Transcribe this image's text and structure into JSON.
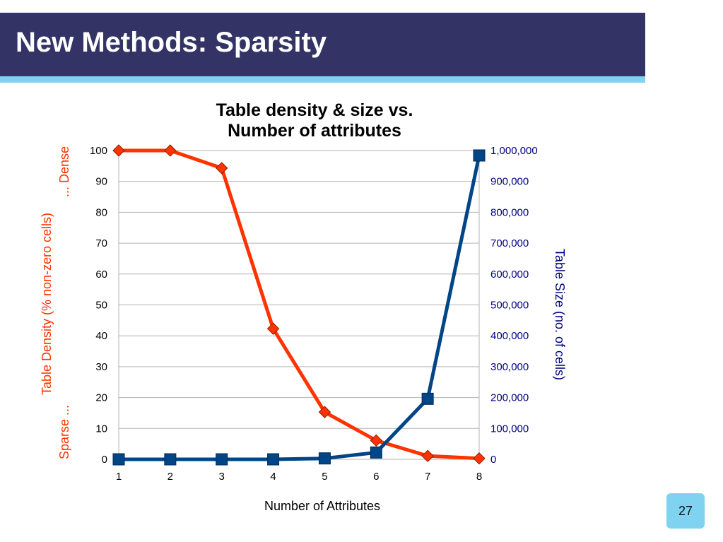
{
  "slide": {
    "title": "New Methods: Sparsity",
    "page_number": "27"
  },
  "colors": {
    "title_bar": "#333366",
    "accent": "#7fd3f0",
    "density_series": "#ff3300",
    "size_series": "#004586",
    "right_axis_text": "#000080"
  },
  "chart_data": {
    "type": "line",
    "title": [
      "Table density & size vs.",
      "Number of attributes"
    ],
    "xlabel": "Number of Attributes",
    "ylabel_left": {
      "outer": "Table Density (% non-zero cells)",
      "inner_top": "... Dense",
      "inner_bottom": "Sparse ..."
    },
    "ylabel_right": "Table Size (no. of cells)",
    "x": [
      1,
      2,
      3,
      4,
      5,
      6,
      7,
      8
    ],
    "x_tick_labels": [
      "1",
      "2",
      "3",
      "4",
      "5",
      "6",
      "7",
      "8"
    ],
    "ylim_left": [
      0,
      100
    ],
    "ylim_right": [
      0,
      1000000
    ],
    "y_left_ticks": [
      "0",
      "10",
      "20",
      "30",
      "40",
      "50",
      "60",
      "70",
      "80",
      "90",
      "100"
    ],
    "y_right_ticks": [
      "0",
      "100,000",
      "200,000",
      "300,000",
      "400,000",
      "500,000",
      "600,000",
      "700,000",
      "800,000",
      "900,000",
      "1,000,000"
    ],
    "grid": true,
    "legend": "none",
    "series": [
      {
        "axis": "left",
        "marker": "diamond",
        "values": [
          100,
          100,
          94.3,
          42.3,
          15.3,
          6.1,
          1.1,
          0.3
        ]
      },
      {
        "axis": "right",
        "marker": "square",
        "values": [
          0,
          0,
          0,
          0,
          3000,
          22000,
          196000,
          984000
        ]
      }
    ]
  }
}
